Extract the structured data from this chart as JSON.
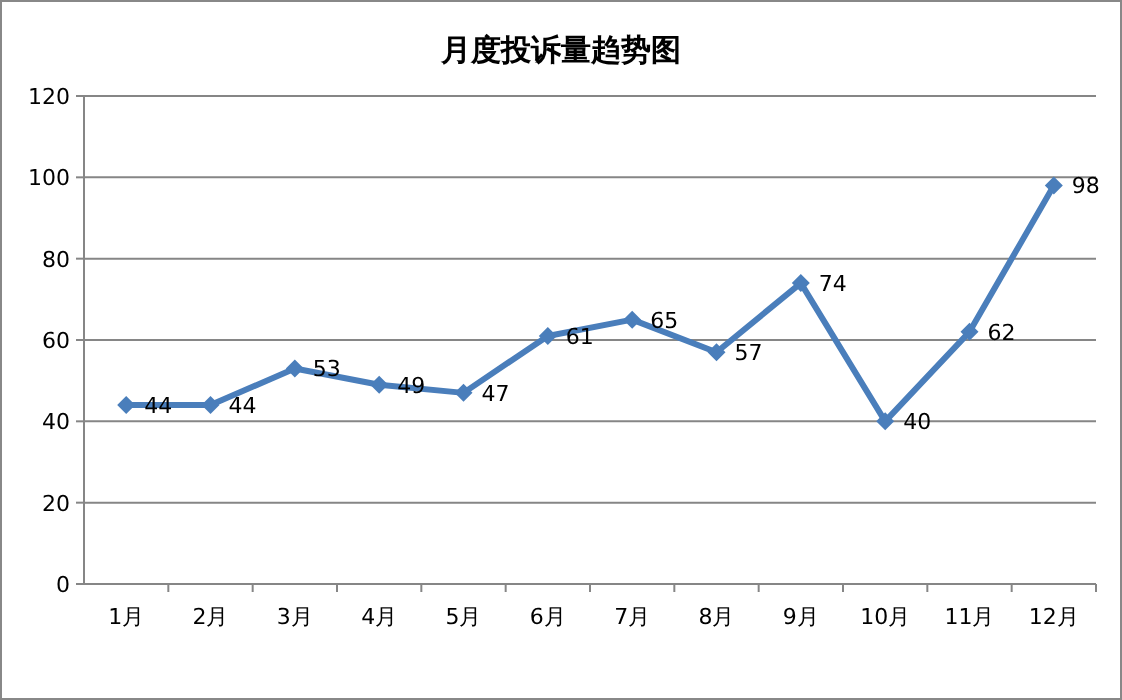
{
  "chart_data": {
    "type": "line",
    "title": "月度投诉量趋势图",
    "categories": [
      "1月",
      "2月",
      "3月",
      "4月",
      "5月",
      "6月",
      "7月",
      "8月",
      "9月",
      "10月",
      "11月",
      "12月"
    ],
    "series": [
      {
        "color": "#4a7ebb",
        "values": [
          44,
          44,
          53,
          49,
          47,
          61,
          65,
          57,
          74,
          40,
          62,
          98
        ]
      }
    ],
    "ylim": [
      0,
      120
    ],
    "yticks": [
      0,
      20,
      40,
      60,
      80,
      100,
      120
    ],
    "grid": "y",
    "marker": "diamond",
    "line_style": "solid",
    "data_labels": true
  }
}
